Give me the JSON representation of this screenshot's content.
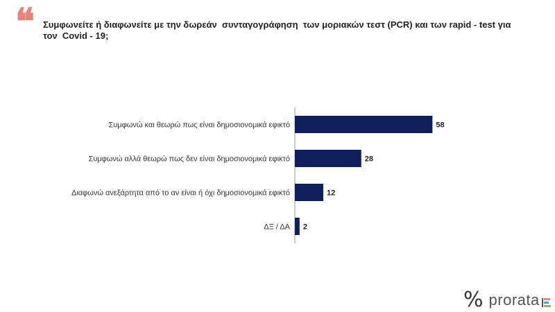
{
  "header": {
    "quote_icon": "quote-icon",
    "question": "Συμφωνείτε ή διαφωνείτε με την δωρεάν  συνταγογράφηση  των μοριακών τεστ (PCR) και των rapid - test για τον  Covid - 19;"
  },
  "chart_data": {
    "type": "bar",
    "orientation": "horizontal",
    "categories": [
      "Συμφωνώ και θεωρώ πως είναι δημοσιονομικά εφικτό",
      "Συμφωνώ αλλά θεωρώ πως δεν είναι δημοσιονομικά εφικτό",
      "Διαφωνώ ανεξάρτητα από το αν είναι ή όχι δημοσιονομικά εφικτό",
      "ΔΞ / ΔΑ"
    ],
    "values": [
      58,
      28,
      12,
      2
    ],
    "xlim": [
      0,
      100
    ],
    "bar_color": "#0f1f5c",
    "grid": false,
    "legend": "none"
  },
  "logo": {
    "icon": "percent-icon",
    "text": "prorata",
    "bar_colors": [
      "#e8837c",
      "#4aa3c8",
      "#8cc152"
    ]
  }
}
